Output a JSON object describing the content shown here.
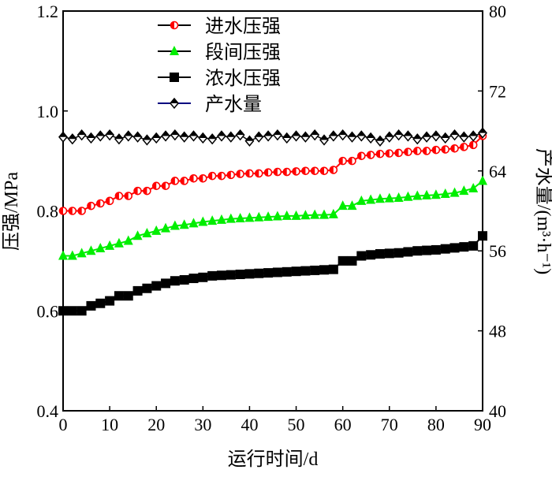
{
  "chart_data": {
    "type": "line",
    "xlabel": "运行时间/d",
    "ylabel": "压强/MPa",
    "y2label": "产水量/(m³·h⁻¹)",
    "xlim": [
      0,
      90
    ],
    "ylim": [
      0.4,
      1.2
    ],
    "y2lim": [
      40,
      80
    ],
    "xticks": [
      "0",
      "10",
      "20",
      "30",
      "40",
      "50",
      "60",
      "70",
      "80",
      "90"
    ],
    "yticks": [
      "0.4",
      "0.6",
      "0.8",
      "1.0",
      "1.2"
    ],
    "y2ticks": [
      "40",
      "48",
      "56",
      "64",
      "72",
      "80"
    ],
    "legend_position": "top-center",
    "x": [
      0,
      2,
      4,
      6,
      8,
      10,
      12,
      14,
      16,
      18,
      20,
      22,
      24,
      26,
      28,
      30,
      32,
      34,
      36,
      38,
      40,
      42,
      44,
      46,
      48,
      50,
      52,
      54,
      56,
      58,
      60,
      62,
      64,
      66,
      68,
      70,
      72,
      74,
      76,
      78,
      80,
      82,
      84,
      86,
      88,
      90
    ],
    "series": [
      {
        "name": "进水压强",
        "axis": "left",
        "color": "#ff0000",
        "marker": "half-circle",
        "values": [
          0.8,
          0.8,
          0.8,
          0.81,
          0.815,
          0.82,
          0.83,
          0.83,
          0.84,
          0.84,
          0.85,
          0.85,
          0.86,
          0.86,
          0.865,
          0.865,
          0.87,
          0.87,
          0.872,
          0.874,
          0.875,
          0.875,
          0.877,
          0.878,
          0.878,
          0.879,
          0.88,
          0.88,
          0.88,
          0.882,
          0.9,
          0.9,
          0.91,
          0.912,
          0.914,
          0.915,
          0.916,
          0.918,
          0.92,
          0.92,
          0.922,
          0.923,
          0.925,
          0.928,
          0.932,
          0.95
        ]
      },
      {
        "name": "段间压强",
        "axis": "left",
        "color": "#00ee00",
        "marker": "triangle",
        "values": [
          0.71,
          0.71,
          0.715,
          0.72,
          0.725,
          0.73,
          0.735,
          0.74,
          0.75,
          0.755,
          0.76,
          0.765,
          0.77,
          0.772,
          0.775,
          0.778,
          0.78,
          0.782,
          0.784,
          0.785,
          0.786,
          0.787,
          0.788,
          0.789,
          0.79,
          0.79,
          0.791,
          0.792,
          0.792,
          0.793,
          0.81,
          0.81,
          0.82,
          0.822,
          0.824,
          0.825,
          0.826,
          0.828,
          0.83,
          0.831,
          0.832,
          0.834,
          0.836,
          0.84,
          0.845,
          0.86
        ]
      },
      {
        "name": "浓水压强",
        "axis": "left",
        "color": "#000000",
        "marker": "square",
        "values": [
          0.6,
          0.6,
          0.6,
          0.61,
          0.615,
          0.62,
          0.63,
          0.63,
          0.64,
          0.645,
          0.65,
          0.655,
          0.66,
          0.662,
          0.665,
          0.667,
          0.67,
          0.671,
          0.672,
          0.673,
          0.674,
          0.675,
          0.676,
          0.677,
          0.678,
          0.679,
          0.68,
          0.681,
          0.682,
          0.683,
          0.7,
          0.7,
          0.71,
          0.712,
          0.714,
          0.715,
          0.716,
          0.718,
          0.72,
          0.721,
          0.722,
          0.724,
          0.726,
          0.728,
          0.73,
          0.75
        ]
      },
      {
        "name": "产水量",
        "axis": "right",
        "color": "#000080",
        "marker": "diamond",
        "values": [
          67.4,
          67.2,
          67.6,
          67.3,
          67.5,
          67.6,
          67.2,
          67.5,
          67.4,
          67.1,
          67.3,
          67.5,
          67.6,
          67.4,
          67.5,
          67.3,
          67.2,
          67.5,
          67.4,
          67.6,
          67.0,
          67.4,
          67.5,
          67.6,
          67.3,
          67.5,
          67.4,
          67.6,
          67.1,
          67.5,
          67.6,
          67.4,
          67.5,
          67.3,
          67.0,
          67.4,
          67.6,
          67.5,
          67.2,
          67.4,
          67.5,
          67.3,
          67.6,
          67.4,
          67.5,
          67.8
        ]
      }
    ]
  }
}
